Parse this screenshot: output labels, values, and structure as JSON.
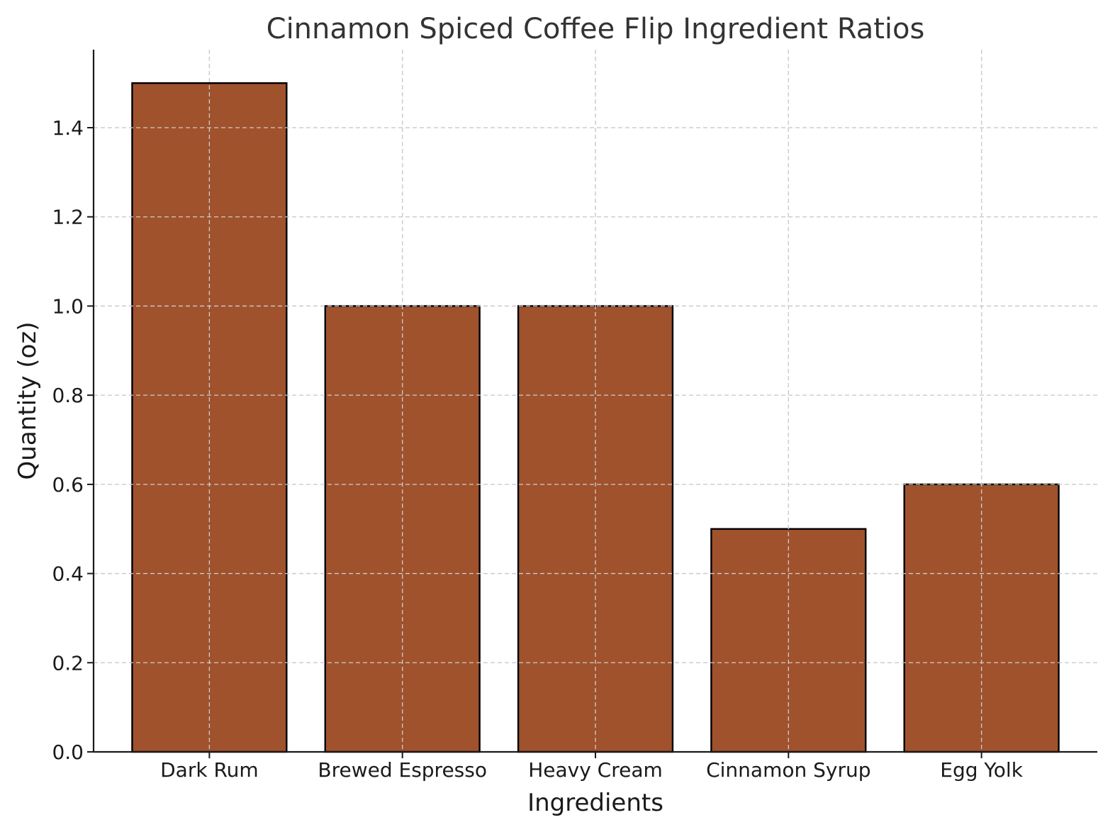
{
  "chart_data": {
    "type": "bar",
    "title": "Cinnamon Spiced Coffee Flip Ingredient Ratios",
    "xlabel": "Ingredients",
    "ylabel": "Quantity (oz)",
    "categories": [
      "Dark Rum",
      "Brewed Espresso",
      "Heavy Cream",
      "Cinnamon Syrup",
      "Egg Yolk"
    ],
    "values": [
      1.5,
      1.0,
      1.0,
      0.5,
      0.6
    ],
    "ylim": [
      0,
      1.575
    ],
    "yticks": [
      0.0,
      0.2,
      0.4,
      0.6,
      0.8,
      1.0,
      1.2,
      1.4
    ],
    "ytick_labels": [
      "0.0",
      "0.2",
      "0.4",
      "0.6",
      "0.8",
      "1.0",
      "1.2",
      "1.4"
    ],
    "grid": true,
    "legend": "none",
    "colors": {
      "bar_fill": "#A0522D",
      "bar_edge": "#000000"
    }
  }
}
